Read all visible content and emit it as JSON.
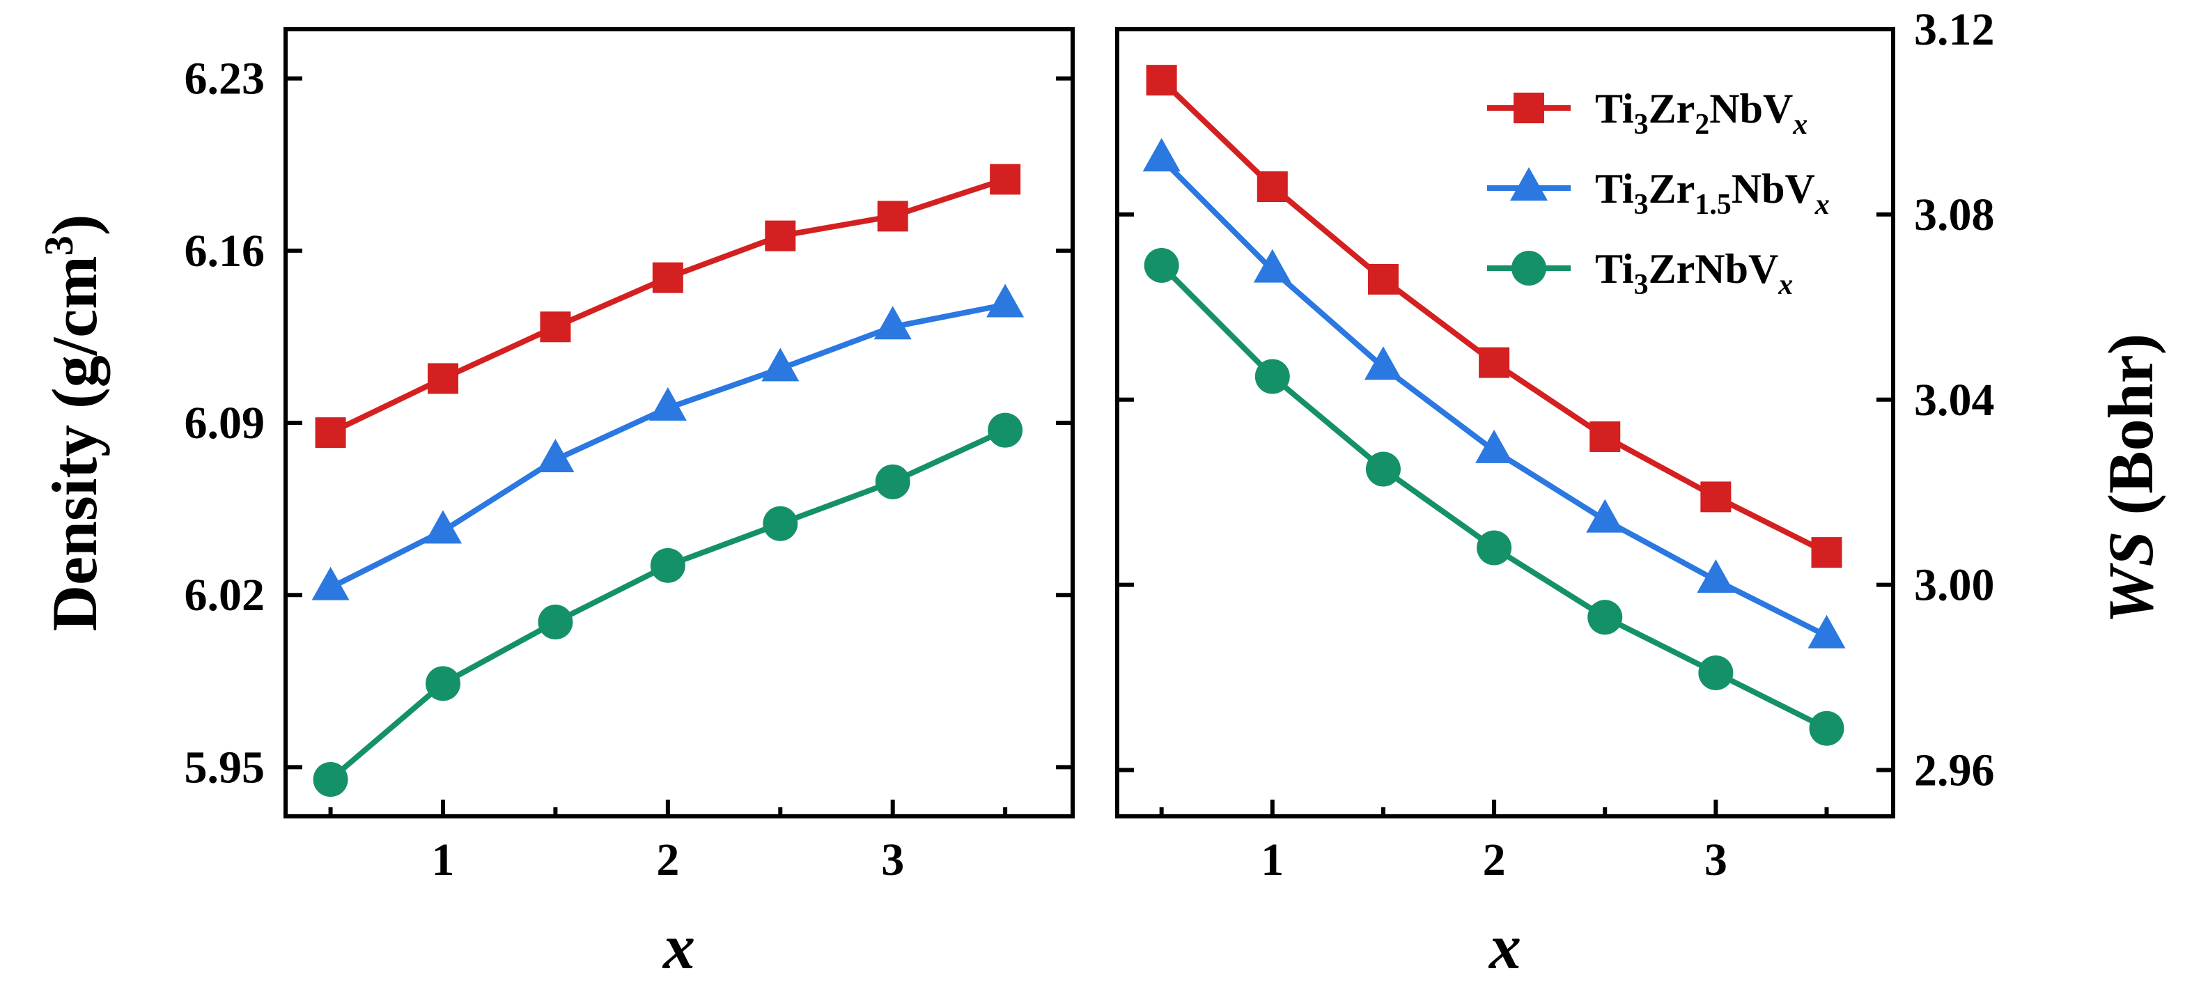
{
  "chart_data": [
    {
      "type": "line",
      "panel": "left",
      "xlabel": "x",
      "ylabel": "Density (g/cm",
      "ylabel_sup": "3",
      "ylabel_close": ")",
      "xlim": [
        0.3,
        3.8
      ],
      "ylim": [
        5.93,
        6.25
      ],
      "x_ticks": [
        1,
        2,
        3
      ],
      "y_ticks": [
        "5.95",
        "6.02",
        "6.09",
        "6.16",
        "6.23"
      ],
      "grid": false,
      "series": [
        {
          "name": "Ti3Zr2NbVx",
          "color": "#d42020",
          "marker": "square",
          "x": [
            0.5,
            1,
            1.5,
            2,
            2.5,
            3,
            3.5
          ],
          "y": [
            6.086,
            6.108,
            6.129,
            6.149,
            6.166,
            6.174,
            6.189
          ]
        },
        {
          "name": "Ti3Zr1.5NbVx",
          "color": "#2a78e0",
          "marker": "triangle",
          "x": [
            0.5,
            1,
            1.5,
            2,
            2.5,
            3,
            3.5
          ],
          "y": [
            6.023,
            6.046,
            6.075,
            6.096,
            6.112,
            6.129,
            6.138
          ]
        },
        {
          "name": "Ti3ZrNbVx",
          "color": "#15916a",
          "marker": "circle",
          "x": [
            0.5,
            1,
            1.5,
            2,
            2.5,
            3,
            3.5
          ],
          "y": [
            5.945,
            5.984,
            6.009,
            6.032,
            6.049,
            6.066,
            6.087
          ]
        }
      ]
    },
    {
      "type": "line",
      "panel": "right",
      "xlabel": "x",
      "ylabel": "WS (Bohr)",
      "ylabel_italic": "WS",
      "ylabel_rest": " (Bohr)",
      "xlim": [
        0.3,
        3.8
      ],
      "ylim": [
        2.95,
        3.12
      ],
      "x_ticks": [
        1,
        2,
        3
      ],
      "y_ticks": [
        "2.96",
        "3.00",
        "3.04",
        "3.08",
        "3.12"
      ],
      "grid": false,
      "legend_position": "top-right",
      "series": [
        {
          "name": "Ti3Zr2NbVx",
          "color": "#d42020",
          "marker": "square",
          "x": [
            0.5,
            1,
            1.5,
            2,
            2.5,
            3,
            3.5
          ],
          "y": [
            3.109,
            3.086,
            3.066,
            3.048,
            3.032,
            3.019,
            3.007
          ]
        },
        {
          "name": "Ti3Zr1.5NbVx",
          "color": "#2a78e0",
          "marker": "triangle",
          "x": [
            0.5,
            1,
            1.5,
            2,
            2.5,
            3,
            3.5
          ],
          "y": [
            3.092,
            3.068,
            3.047,
            3.029,
            3.014,
            3.001,
            2.989
          ]
        },
        {
          "name": "Ti3ZrNbVx",
          "color": "#15916a",
          "marker": "circle",
          "x": [
            0.5,
            1,
            1.5,
            2,
            2.5,
            3,
            3.5
          ],
          "y": [
            3.069,
            3.045,
            3.025,
            3.008,
            2.993,
            2.981,
            2.969
          ]
        }
      ]
    }
  ],
  "legend": [
    {
      "base": "Ti",
      "sub1": "3",
      "mid": "Zr",
      "sub2": "2",
      "tail": "NbV",
      "subx": "x",
      "color": "#d42020",
      "marker": "square"
    },
    {
      "base": "Ti",
      "sub1": "3",
      "mid": "Zr",
      "sub2": "1.5",
      "tail": "NbV",
      "subx": "x",
      "color": "#2a78e0",
      "marker": "triangle"
    },
    {
      "base": "Ti",
      "sub1": "3",
      "mid": "Zr",
      "sub2": "",
      "tail": "NbV",
      "subx": "x",
      "color": "#15916a",
      "marker": "circle"
    }
  ]
}
